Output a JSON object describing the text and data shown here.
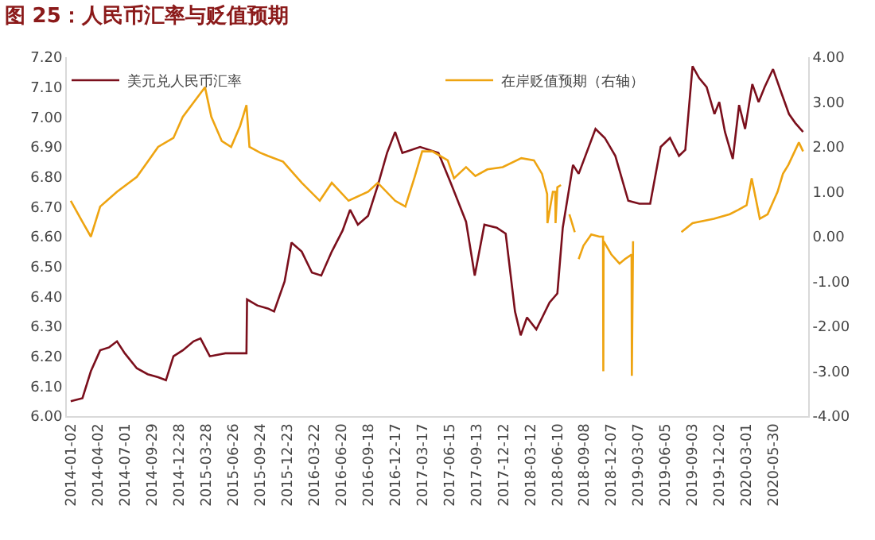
{
  "chart_data": {
    "type": "line",
    "title": "图 25：人民币汇率与贬值预期",
    "xlim": [
      "2013-12-20",
      "2020-09-22"
    ],
    "xticks": [
      "2014-01-02",
      "2014-04-02",
      "2014-07-01",
      "2014-09-29",
      "2014-12-28",
      "2015-03-28",
      "2015-06-26",
      "2015-09-24",
      "2015-12-23",
      "2016-03-22",
      "2016-06-20",
      "2016-09-18",
      "2016-12-17",
      "2017-03-17",
      "2017-06-15",
      "2017-09-13",
      "2017-12-12",
      "2018-03-12",
      "2018-06-10",
      "2018-09-08",
      "2018-12-07",
      "2019-03-07",
      "2019-06-05",
      "2019-09-03",
      "2019-12-02",
      "2020-03-01",
      "2020-05-30"
    ],
    "ylim": [
      6.0,
      7.2
    ],
    "yticks": [
      {
        "value": 6.0,
        "label": "6.00"
      },
      {
        "value": 6.1,
        "label": "6.10"
      },
      {
        "value": 6.2,
        "label": "6.20"
      },
      {
        "value": 6.3,
        "label": "6.30"
      },
      {
        "value": 6.4,
        "label": "6.40"
      },
      {
        "value": 6.5,
        "label": "6.50"
      },
      {
        "value": 6.6,
        "label": "6.60"
      },
      {
        "value": 6.7,
        "label": "6.70"
      },
      {
        "value": 6.8,
        "label": "6.80"
      },
      {
        "value": 6.9,
        "label": "6.90"
      },
      {
        "value": 7.0,
        "label": "7.00"
      },
      {
        "value": 7.1,
        "label": "7.10"
      },
      {
        "value": 7.2,
        "label": "7.20"
      }
    ],
    "y2lim": [
      -4.0,
      4.0
    ],
    "y2ticks": [
      {
        "value": -4,
        "label": "-4.00"
      },
      {
        "value": -3,
        "label": "-3.00"
      },
      {
        "value": -2,
        "label": "-2.00"
      },
      {
        "value": -1,
        "label": "-1.00"
      },
      {
        "value": 0,
        "label": "0.00"
      },
      {
        "value": 1,
        "label": "1.00"
      },
      {
        "value": 2,
        "label": "2.00"
      },
      {
        "value": 3,
        "label": "3.00"
      },
      {
        "value": 4,
        "label": "4.00"
      }
    ],
    "legend": "top",
    "marker": "none",
    "line_style": "solid",
    "series": [
      {
        "name": "美元兑人民币汇率",
        "color": "#7b0f1c",
        "x": [
          "2014-01-02",
          "2014-02-10",
          "2014-03-10",
          "2014-04-10",
          "2014-05-10",
          "2014-06-05",
          "2014-07-01",
          "2014-08-10",
          "2014-09-15",
          "2014-10-20",
          "2014-11-15",
          "2014-12-10",
          "2015-01-10",
          "2015-02-15",
          "2015-03-10",
          "2015-04-10",
          "2015-06-01",
          "2015-08-10",
          "2015-08-12",
          "2015-09-15",
          "2015-10-20",
          "2015-11-10",
          "2015-12-15",
          "2016-01-07",
          "2016-02-10",
          "2016-03-15",
          "2016-04-15",
          "2016-05-20",
          "2016-06-25",
          "2016-07-20",
          "2016-08-15",
          "2016-09-18",
          "2016-10-20",
          "2016-11-20",
          "2016-12-17",
          "2017-01-10",
          "2017-03-10",
          "2017-05-10",
          "2017-06-20",
          "2017-08-10",
          "2017-09-08",
          "2017-10-10",
          "2017-11-20",
          "2017-12-20",
          "2018-01-20",
          "2018-02-08",
          "2018-03-01",
          "2018-04-01",
          "2018-05-15",
          "2018-06-10",
          "2018-06-28",
          "2018-08-01",
          "2018-08-20",
          "2018-10-15",
          "2018-11-15",
          "2018-12-20",
          "2019-02-01",
          "2019-03-10",
          "2019-04-15",
          "2019-05-20",
          "2019-06-20",
          "2019-07-20",
          "2019-08-10",
          "2019-09-03",
          "2019-09-25",
          "2019-10-20",
          "2019-11-15",
          "2019-12-01",
          "2019-12-20",
          "2020-01-15",
          "2020-02-05",
          "2020-02-25",
          "2020-03-20",
          "2020-04-10",
          "2020-04-30",
          "2020-05-28",
          "2020-06-25",
          "2020-07-20",
          "2020-08-10",
          "2020-09-05"
        ],
        "values": [
          6.05,
          6.06,
          6.15,
          6.22,
          6.23,
          6.25,
          6.21,
          6.16,
          6.14,
          6.13,
          6.12,
          6.2,
          6.22,
          6.25,
          6.26,
          6.2,
          6.21,
          6.21,
          6.39,
          6.37,
          6.36,
          6.35,
          6.45,
          6.58,
          6.55,
          6.48,
          6.47,
          6.55,
          6.62,
          6.69,
          6.64,
          6.67,
          6.77,
          6.88,
          6.95,
          6.88,
          6.9,
          6.88,
          6.78,
          6.65,
          6.47,
          6.64,
          6.63,
          6.61,
          6.35,
          6.27,
          6.33,
          6.29,
          6.38,
          6.41,
          6.63,
          6.84,
          6.81,
          6.96,
          6.93,
          6.87,
          6.72,
          6.71,
          6.71,
          6.9,
          6.93,
          6.87,
          6.89,
          7.17,
          7.13,
          7.1,
          7.01,
          7.05,
          6.95,
          6.86,
          7.04,
          6.96,
          7.11,
          7.05,
          7.1,
          7.16,
          7.08,
          7.01,
          6.98,
          6.95
        ]
      },
      {
        "name": "在岸贬值预期（右轴）",
        "color": "#eea411",
        "axis": "y2",
        "x": [
          "2014-01-02",
          "2014-02-10",
          "2014-03-10",
          "2014-04-10",
          "2014-06-05",
          "2014-08-10",
          "2014-09-15",
          "2014-10-20",
          "2014-12-10",
          "2015-01-10",
          "2015-03-25",
          "2015-04-15",
          "2015-05-20",
          "2015-06-20",
          "2015-07-20",
          "2015-08-10",
          "2015-08-20",
          "2015-09-25",
          "2015-10-20",
          "2015-12-10",
          "2016-02-10",
          "2016-04-10",
          "2016-05-20",
          "2016-07-15",
          "2016-09-18",
          "2016-10-20",
          "2016-12-17",
          "2017-01-20",
          "2017-02-20",
          "2017-03-17",
          "2017-04-20",
          "2017-06-10",
          "2017-07-01",
          "2017-08-10",
          "2017-09-10",
          "2017-10-20",
          "2017-12-10",
          "2018-02-10",
          "2018-03-24",
          "2018-04-20",
          "2018-05-07",
          "2018-05-08",
          "2018-05-26",
          "2018-06-03",
          "2018-06-04",
          "2018-06-10",
          "2018-06-22",
          "2018-07-05",
          "2018-07-20",
          "2018-08-07",
          "2018-08-14",
          "2018-08-20",
          "2018-09-05",
          "2018-10-01",
          "2018-10-28",
          "2018-11-09",
          "2018-11-10",
          "2018-11-11",
          "2018-12-07",
          "2019-01-03",
          "2019-01-21",
          "2019-02-12",
          "2019-02-13",
          "2019-02-17",
          "2019-03-05",
          "2019-07-28",
          "2019-09-03",
          "2019-11-13",
          "2020-01-05",
          "2020-02-03",
          "2020-03-01",
          "2020-03-18",
          "2020-04-14",
          "2020-05-10",
          "2020-06-12",
          "2020-06-30",
          "2020-07-18",
          "2020-08-22",
          "2020-09-05"
        ],
        "values": [
          0.8,
          0.33,
          0.0,
          0.67,
          1.0,
          1.33,
          1.67,
          2.0,
          2.2,
          2.67,
          3.33,
          2.67,
          2.13,
          2.0,
          2.47,
          2.93,
          2.0,
          1.87,
          1.8,
          1.67,
          1.2,
          0.8,
          1.2,
          0.8,
          1.0,
          1.2,
          0.8,
          0.67,
          1.33,
          1.9,
          1.9,
          1.7,
          1.3,
          1.55,
          1.35,
          1.5,
          1.55,
          1.75,
          1.7,
          1.4,
          0.95,
          0.3,
          1.0,
          1.0,
          0.3,
          1.1,
          1.15,
          null,
          0.5,
          0.1,
          null,
          -0.5,
          -0.2,
          0.05,
          0.0,
          0.0,
          -3.0,
          -0.1,
          -0.4,
          -0.6,
          -0.5,
          -0.4,
          -3.1,
          -0.1,
          null,
          0.1,
          0.3,
          0.4,
          0.5,
          0.6,
          0.7,
          1.3,
          0.4,
          0.5,
          1.0,
          1.4,
          1.6,
          2.1,
          1.9
        ]
      }
    ]
  }
}
